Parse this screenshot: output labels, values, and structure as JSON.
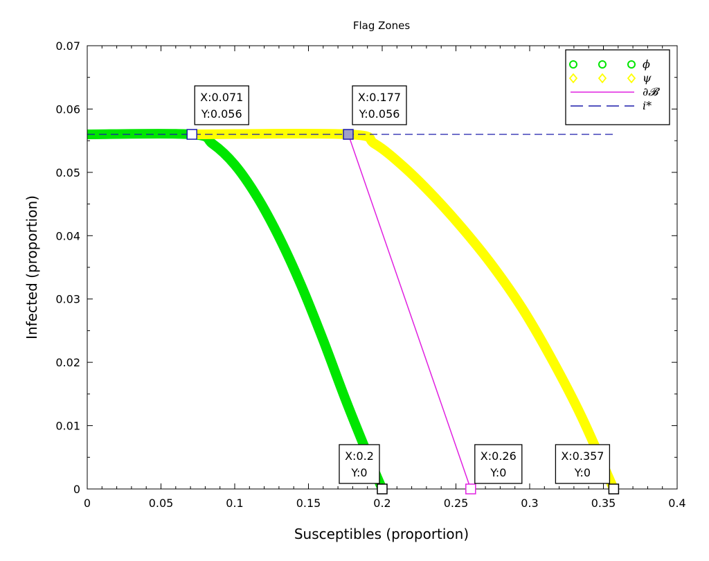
{
  "chart_data": {
    "type": "line",
    "title": "Flag Zones",
    "xlabel": "Susceptibles (proportion)",
    "ylabel": "Infected (proportion)",
    "xlim": [
      0,
      0.4
    ],
    "ylim": [
      0,
      0.07
    ],
    "grid": false,
    "legend_position": "top-right",
    "x_ticks": [
      "0",
      "0.05",
      "0.1",
      "0.15",
      "0.2",
      "0.25",
      "0.3",
      "0.35",
      "0.4"
    ],
    "y_ticks": [
      "0",
      "0.01",
      "0.02",
      "0.03",
      "0.04",
      "0.05",
      "0.06",
      "0.07"
    ],
    "series": [
      {
        "name": "ϕ",
        "color": "#00e600",
        "style": "thick-curve",
        "x": [
          0,
          0.071,
          0.085,
          0.1,
          0.115,
          0.13,
          0.145,
          0.16,
          0.175,
          0.19,
          0.2
        ],
        "y": [
          0.056,
          0.056,
          0.0545,
          0.0512,
          0.0462,
          0.0398,
          0.0322,
          0.0235,
          0.0142,
          0.0055,
          0
        ]
      },
      {
        "name": "ψ",
        "color": "#ffff00",
        "style": "thick-curve",
        "x": [
          0.071,
          0.177,
          0.195,
          0.215,
          0.235,
          0.255,
          0.275,
          0.295,
          0.315,
          0.335,
          0.357
        ],
        "y": [
          0.056,
          0.056,
          0.0545,
          0.0508,
          0.0462,
          0.041,
          0.0352,
          0.0285,
          0.0205,
          0.0115,
          0
        ]
      },
      {
        "name": "∂B",
        "color": "#e020e0",
        "style": "thin-line",
        "x": [
          0.177,
          0.26
        ],
        "y": [
          0.056,
          0
        ]
      },
      {
        "name": "i*",
        "color": "#1a1aaa",
        "style": "dashed-line",
        "x": [
          0,
          0.357
        ],
        "y": [
          0.056,
          0.056
        ]
      }
    ],
    "legend": [
      {
        "label": "ϕ",
        "color": "#00e600",
        "marker": "circle"
      },
      {
        "label": "ψ",
        "color": "#ffff00",
        "marker": "diamond"
      },
      {
        "label": "∂𝓑",
        "color": "#e020e0",
        "marker": "line"
      },
      {
        "label": "i*",
        "color": "#1a1aaa",
        "marker": "dash"
      }
    ],
    "datatips": [
      {
        "x": 0.071,
        "y": 0.056,
        "line1": "X:0.071",
        "line2": "Y:0.056",
        "marker_color": "#ffffff",
        "edge": "#1a1aaa"
      },
      {
        "x": 0.177,
        "y": 0.056,
        "line1": "X:0.177",
        "line2": "Y:0.056",
        "marker_color": "#a0a0c8",
        "edge": "#1a1aaa"
      },
      {
        "x": 0.2,
        "y": 0,
        "line1": "X:0.2",
        "line2": "Y:0",
        "marker_color": "#ffffff",
        "edge": "#000000"
      },
      {
        "x": 0.26,
        "y": 0,
        "line1": "X:0.26",
        "line2": "Y:0",
        "marker_color": "#ffffff",
        "edge": "#e020e0"
      },
      {
        "x": 0.357,
        "y": 0,
        "line1": "X:0.357",
        "line2": "Y:0",
        "marker_color": "#ffffff",
        "edge": "#000000"
      }
    ]
  }
}
